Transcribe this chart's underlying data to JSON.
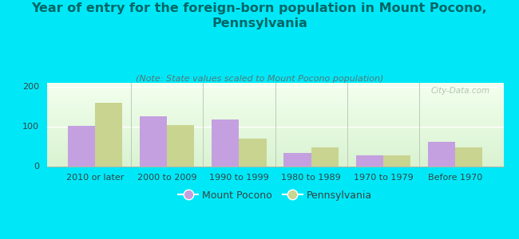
{
  "title": "Year of entry for the foreign-born population in Mount Pocono,\nPennsylvania",
  "subtitle": "(Note: State values scaled to Mount Pocono population)",
  "categories": [
    "2010 or later",
    "2000 to 2009",
    "1990 to 1999",
    "1980 to 1989",
    "1970 to 1979",
    "Before 1970"
  ],
  "mount_pocono": [
    101,
    126,
    117,
    33,
    28,
    62
  ],
  "pennsylvania": [
    160,
    103,
    70,
    48,
    27,
    48
  ],
  "mp_color": "#c4a0e0",
  "pa_color": "#c8d490",
  "background_color": "#00e8f8",
  "ylim": [
    0,
    210
  ],
  "yticks": [
    0,
    100,
    200
  ],
  "bar_width": 0.38,
  "legend_mp": "Mount Pocono",
  "legend_pa": "Pennsylvania",
  "watermark": "City-Data.com",
  "title_fontsize": 11.5,
  "subtitle_fontsize": 8,
  "tick_fontsize": 8,
  "legend_fontsize": 9,
  "title_color": "#006666",
  "subtitle_color": "#557777",
  "tick_color": "#334444"
}
